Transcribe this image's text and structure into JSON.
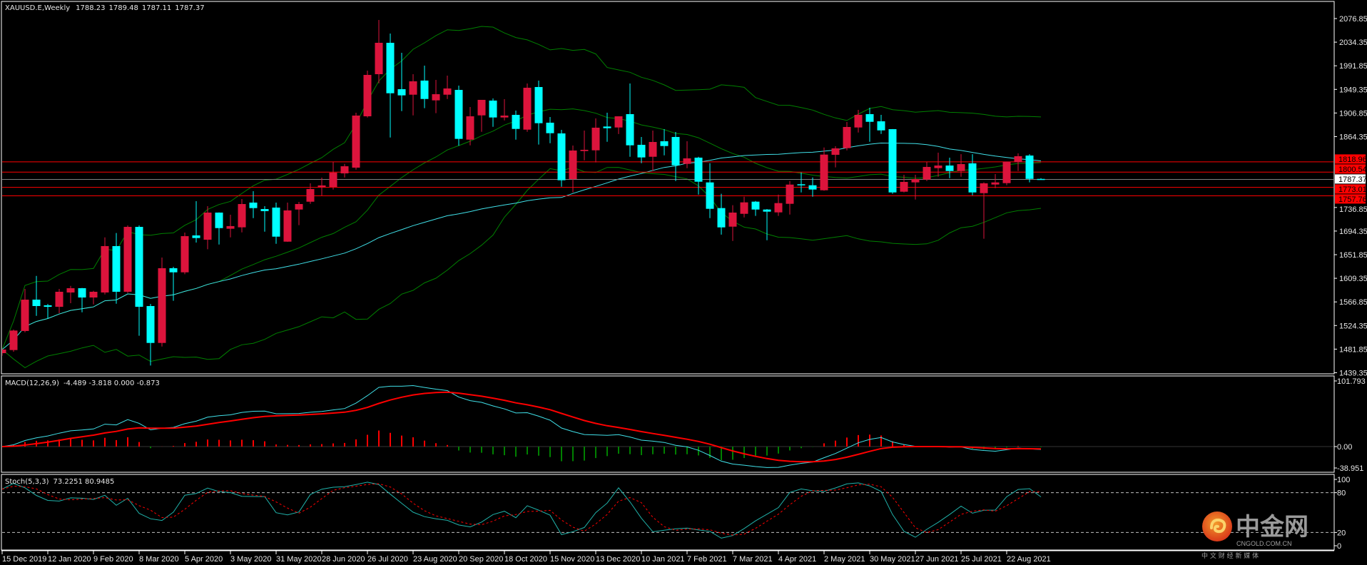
{
  "chart_data": [
    {
      "type": "candlestick",
      "title": "XAUUSD.E,Weekly",
      "last_ohlc": [
        "1788.23",
        "1789.48",
        "1787.11",
        "1787.37"
      ],
      "bull_color": "#dc143c",
      "bear_color": "#00ffff",
      "band_color": "#008000",
      "ma_color": "#40e0e8",
      "ylim": [
        1439.35,
        2076.85
      ],
      "y_ticks": [
        "2076.85",
        "2034.35",
        "1991.85",
        "1949.35",
        "1906.85",
        "1864.35",
        "1736.85",
        "1694.35",
        "1651.85",
        "1609.35",
        "1566.85",
        "1524.35",
        "1481.85",
        "1439.35"
      ],
      "x_labels": [
        "15 Dec 2019",
        "12 Jan 2020",
        "9 Feb 2020",
        "8 Mar 2020",
        "5 Apr 2020",
        "3 May 2020",
        "31 May 2020",
        "28 Jun 2020",
        "26 Jul 2020",
        "23 Aug 2020",
        "20 Sep 2020",
        "18 Oct 2020",
        "15 Nov 2020",
        "13 Dec 2020",
        "10 Jan 2021",
        "7 Feb 2021",
        "7 Mar 2021",
        "4 Apr 2021",
        "2 May 2021",
        "30 May 2021",
        "27 Jun 2021",
        "25 Jul 2021",
        "22 Aug 2021"
      ],
      "current_price": {
        "value": "1787.37",
        "color": "#ffffff"
      },
      "levels": [
        {
          "value": "1818.96",
          "color": "#ff0000"
        },
        {
          "value": "1800.54",
          "color": "#ff0000"
        },
        {
          "value": "1773.01",
          "color": "#ff0000"
        },
        {
          "value": "1757.76",
          "color": "#ff0000"
        }
      ],
      "indicators": {
        "bollinger": {
          "period": 20,
          "deviation": 2
        },
        "sma": {
          "period": 50
        }
      },
      "ohlc": [
        [
          1474.6,
          1483,
          1470,
          1481.1
        ],
        [
          1480.2,
          1517,
          1477,
          1515.3
        ],
        [
          1514.5,
          1590.2,
          1512,
          1570.9
        ],
        [
          1570.9,
          1613.7,
          1541.8,
          1559.4
        ],
        [
          1560.7,
          1563.2,
          1536.7,
          1558
        ],
        [
          1558,
          1590.2,
          1546.6,
          1585.1
        ],
        [
          1583.8,
          1595.7,
          1564.5,
          1591.5
        ],
        [
          1591.5,
          1592,
          1548.2,
          1574.8
        ],
        [
          1574.8,
          1586.8,
          1562.4,
          1585.1
        ],
        [
          1583.8,
          1683,
          1580.3,
          1667.3
        ],
        [
          1667.3,
          1690.8,
          1563.6,
          1585.1
        ],
        [
          1585.1,
          1704.5,
          1582.9,
          1701.9
        ],
        [
          1701.9,
          1704.5,
          1505.9,
          1558
        ],
        [
          1559.4,
          1563.2,
          1452.4,
          1493
        ],
        [
          1493,
          1646.7,
          1486.6,
          1627.5
        ],
        [
          1627.5,
          1630,
          1568.8,
          1620.1
        ],
        [
          1620.1,
          1691.6,
          1616.7,
          1685.2
        ],
        [
          1686.5,
          1748.1,
          1673.7,
          1681.8
        ],
        [
          1678.8,
          1739.2,
          1661.7,
          1727.6
        ],
        [
          1727.6,
          1728,
          1670.2,
          1699.7
        ],
        [
          1698.5,
          1723.8,
          1683,
          1703.3
        ],
        [
          1701.1,
          1752,
          1692,
          1743
        ],
        [
          1745.6,
          1766.1,
          1717.7,
          1735.7
        ],
        [
          1734,
          1739.2,
          1693.3,
          1730.2
        ],
        [
          1736.6,
          1745.6,
          1671.5,
          1684.3
        ],
        [
          1675.3,
          1745.6,
          1675,
          1731.5
        ],
        [
          1733.1,
          1746.9,
          1704.9,
          1743
        ],
        [
          1747.2,
          1780.3,
          1743.4,
          1770
        ],
        [
          1773.4,
          1790.5,
          1758.4,
          1776.5
        ],
        [
          1773.8,
          1819.1,
          1769,
          1799.5
        ],
        [
          1798.2,
          1815.3,
          1790.9,
          1811
        ],
        [
          1808.5,
          1907.3,
          1805,
          1902.2
        ],
        [
          1900.9,
          1983.1,
          1898.7,
          1975.4
        ],
        [
          1976.7,
          2074.3,
          1960.4,
          2033.2
        ],
        [
          2033.2,
          2049.9,
          1862.8,
          1942.4
        ],
        [
          1949.7,
          2015.2,
          1910.3,
          1938.6
        ],
        [
          1939.8,
          1976.7,
          1902.6,
          1963.9
        ],
        [
          1965.2,
          1992.1,
          1915.5,
          1932.1
        ],
        [
          1929.6,
          1966.4,
          1906.5,
          1940.7
        ],
        [
          1939.8,
          1974.1,
          1932.1,
          1951
        ],
        [
          1948.4,
          1956.1,
          1847.9,
          1860.3
        ],
        [
          1858.9,
          1917.6,
          1848.7,
          1900.9
        ],
        [
          1902.6,
          1930.5,
          1873,
          1930.5
        ],
        [
          1929.2,
          1933,
          1882,
          1898.8
        ],
        [
          1898.8,
          1931.7,
          1893.6,
          1902.2
        ],
        [
          1903.5,
          1911.2,
          1858.9,
          1878.2
        ],
        [
          1876.9,
          1960,
          1873,
          1952.3
        ],
        [
          1953.6,
          1965.2,
          1850,
          1888.5
        ],
        [
          1889.4,
          1899.6,
          1852.5,
          1870.5
        ],
        [
          1870.1,
          1876.5,
          1774.2,
          1785.8
        ],
        [
          1787.9,
          1848.3,
          1763.9,
          1839.3
        ],
        [
          1838.4,
          1875.2,
          1821.7,
          1840.6
        ],
        [
          1839.7,
          1897.1,
          1817.9,
          1880.4
        ],
        [
          1882.5,
          1907.3,
          1855.1,
          1879.5
        ],
        [
          1880.8,
          1901,
          1869,
          1900.9
        ],
        [
          1904.8,
          1960,
          1828,
          1848.7
        ],
        [
          1849.6,
          1863.7,
          1816.6,
          1826.9
        ],
        [
          1828.1,
          1875.2,
          1802.5,
          1854.7
        ],
        [
          1856,
          1877.8,
          1830.7,
          1847.4
        ],
        [
          1863.7,
          1872.7,
          1784.5,
          1812.7
        ],
        [
          1815.3,
          1856,
          1807.6,
          1825.2
        ],
        [
          1826.5,
          1828,
          1760.1,
          1783.2
        ],
        [
          1781.9,
          1816.6,
          1717.7,
          1734.4
        ],
        [
          1735.7,
          1761.4,
          1688,
          1701
        ],
        [
          1702.3,
          1740.9,
          1676.6,
          1727.6
        ],
        [
          1725.4,
          1756.2,
          1719,
          1746
        ],
        [
          1747.3,
          1748.5,
          1721.6,
          1733.1
        ],
        [
          1733.1,
          1734,
          1677.9,
          1729.3
        ],
        [
          1728,
          1760.1,
          1721.6,
          1744.7
        ],
        [
          1743.4,
          1784.5,
          1724,
          1778
        ],
        [
          1778.6,
          1799.9,
          1763.9,
          1776.8
        ],
        [
          1776.8,
          1790.9,
          1756.2,
          1769.1
        ],
        [
          1767.8,
          1844.8,
          1767,
          1832
        ],
        [
          1831.6,
          1847,
          1808.9,
          1843.2
        ],
        [
          1843.6,
          1890.7,
          1839.7,
          1881.7
        ],
        [
          1880.8,
          1912.5,
          1871.8,
          1903.5
        ],
        [
          1904.8,
          1916.3,
          1855.1,
          1891
        ],
        [
          1891.9,
          1903.5,
          1869.2,
          1875.6
        ],
        [
          1877.8,
          1878,
          1761.4,
          1763.9
        ],
        [
          1765.2,
          1795.6,
          1763.9,
          1782.8
        ],
        [
          1782,
          1795.6,
          1751.1,
          1787.9
        ],
        [
          1787.1,
          1818.8,
          1784.5,
          1809.8
        ],
        [
          1807.6,
          1835.4,
          1792.2,
          1812.3
        ],
        [
          1812.3,
          1826.5,
          1789.6,
          1802.4
        ],
        [
          1802.4,
          1832.8,
          1792.2,
          1814.9
        ],
        [
          1816.2,
          1832.8,
          1758.8,
          1763.9
        ],
        [
          1762.6,
          1782,
          1680.5,
          1780.3
        ],
        [
          1778.1,
          1796.9,
          1771.6,
          1781.9
        ],
        [
          1780.6,
          1819.2,
          1776.8,
          1819.2
        ],
        [
          1818.4,
          1834.1,
          1802.5,
          1829.1
        ],
        [
          1830.3,
          1832.8,
          1782,
          1788.3
        ],
        [
          1788.23,
          1789.48,
          1787.11,
          1787.37
        ]
      ]
    },
    {
      "type": "line",
      "title": "MACD(12,26,9)",
      "values_text": "-4.489 -3.818 0.000 -0.873",
      "ylim": [
        -38.951,
        101.793
      ],
      "y_ticks": [
        "101.793",
        "0.00",
        "-38.951"
      ],
      "main_color": "#40e0e8",
      "signal_color": "#ff0000",
      "hist_up_color": "#ff0000",
      "hist_down_color": "#008000"
    },
    {
      "type": "line",
      "title": "Stoch(5,3,3)",
      "values_text": "73.2251 80.9485",
      "ylim": [
        0,
        100
      ],
      "y_ticks": [
        "100",
        "80",
        "20",
        "0"
      ],
      "levels": [
        80,
        20
      ],
      "k_color": "#20b2aa",
      "d_color": "#ff0000"
    }
  ],
  "watermark": {
    "name": "中金网",
    "domain": "CNGOLD.COM.CN",
    "tagline": "中 文 财 经 新 媒 体"
  }
}
